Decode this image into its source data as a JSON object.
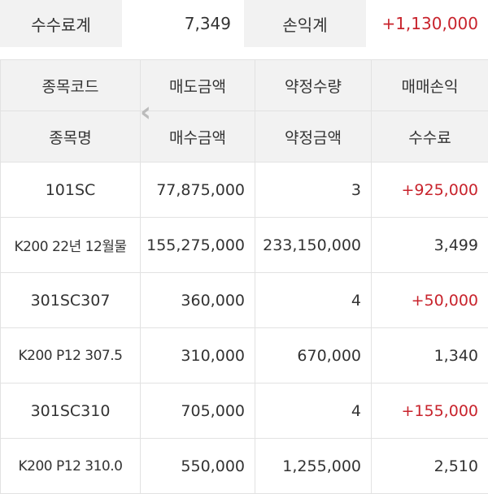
{
  "summary": {
    "fee_label": "수수료계",
    "fee_value": "7,349",
    "pl_label": "손익계",
    "pl_value": "+1,130,000"
  },
  "headers": {
    "row1": [
      "종목코드",
      "매도금액",
      "약정수량",
      "매매손익"
    ],
    "row2": [
      "종목명",
      "매수금액",
      "약정금액",
      "수수료"
    ]
  },
  "rows": [
    {
      "code": "101SC",
      "sell": "77,875,000",
      "qty": "3",
      "pl": "+925,000",
      "name": "K200 22년 12월물",
      "buy": "155,275,000",
      "amount": "233,150,000",
      "fee": "3,499"
    },
    {
      "code": "301SC307",
      "sell": "360,000",
      "qty": "4",
      "pl": "+50,000",
      "name": "K200 P12 307.5",
      "buy": "310,000",
      "amount": "670,000",
      "fee": "1,340"
    },
    {
      "code": "301SC310",
      "sell": "705,000",
      "qty": "4",
      "pl": "+155,000",
      "name": "K200 P12 310.0",
      "buy": "550,000",
      "amount": "1,255,000",
      "fee": "2,510"
    }
  ],
  "colors": {
    "profit": "#c8232c"
  },
  "icons": {
    "scroll_left": "chevron-left-icon"
  }
}
